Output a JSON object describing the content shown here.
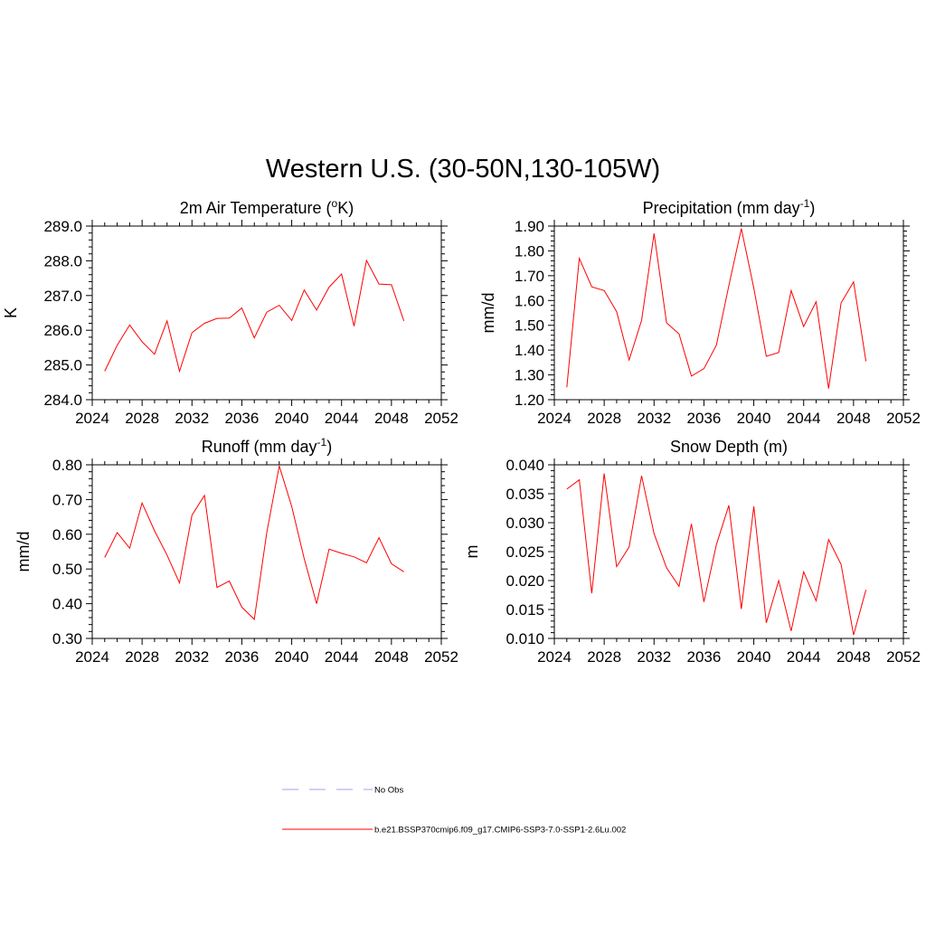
{
  "title": "Western U.S. (30-50N,130-105W)",
  "chart_data": [
    {
      "type": "line",
      "title": "2m Air Temperature (",
      "title_sup": "o",
      "title_post": "K)",
      "ylabel": "K",
      "xlim": [
        2024,
        2052
      ],
      "ylim": [
        284.0,
        289.0
      ],
      "xticks": [
        "2024",
        "2028",
        "2032",
        "2036",
        "2040",
        "2044",
        "2048",
        "2052"
      ],
      "yticks": [
        "284.0",
        "285.0",
        "286.0",
        "287.0",
        "288.0",
        "289.0"
      ],
      "x": [
        2025,
        2026,
        2027,
        2028,
        2029,
        2030,
        2031,
        2032,
        2033,
        2034,
        2035,
        2036,
        2037,
        2038,
        2039,
        2040,
        2041,
        2042,
        2043,
        2044,
        2045,
        2046,
        2047,
        2048,
        2049
      ],
      "series": [
        {
          "color": "#ff0000",
          "values": [
            284.82,
            285.57,
            286.15,
            285.67,
            285.31,
            286.27,
            284.82,
            285.93,
            286.2,
            286.34,
            286.35,
            286.64,
            285.78,
            286.52,
            286.72,
            286.28,
            287.16,
            286.58,
            287.24,
            287.62,
            286.12,
            288.01,
            287.33,
            287.31,
            286.27
          ]
        }
      ]
    },
    {
      "type": "line",
      "title": "Precipitation (mm day",
      "title_sup": "-1",
      "title_post": ")",
      "ylabel": "mm/d",
      "xlim": [
        2024,
        2052
      ],
      "ylim": [
        1.2,
        1.9
      ],
      "xticks": [
        "2024",
        "2028",
        "2032",
        "2036",
        "2040",
        "2044",
        "2048",
        "2052"
      ],
      "yticks": [
        "1.20",
        "1.30",
        "1.40",
        "1.50",
        "1.60",
        "1.70",
        "1.80",
        "1.90"
      ],
      "x": [
        2025,
        2026,
        2027,
        2028,
        2029,
        2030,
        2031,
        2032,
        2033,
        2034,
        2035,
        2036,
        2037,
        2038,
        2039,
        2040,
        2041,
        2042,
        2043,
        2044,
        2045,
        2046,
        2047,
        2048,
        2049
      ],
      "series": [
        {
          "color": "#ff0000",
          "values": [
            1.25,
            1.77,
            1.655,
            1.64,
            1.555,
            1.36,
            1.52,
            1.87,
            1.51,
            1.465,
            1.295,
            1.325,
            1.42,
            1.66,
            1.89,
            1.65,
            1.375,
            1.39,
            1.64,
            1.495,
            1.595,
            1.245,
            1.59,
            1.675,
            1.355
          ]
        }
      ]
    },
    {
      "type": "line",
      "title": "Runoff (mm day",
      "title_sup": "-1",
      "title_post": ")",
      "ylabel": "mm/d",
      "xlim": [
        2024,
        2052
      ],
      "ylim": [
        0.3,
        0.8
      ],
      "xticks": [
        "2024",
        "2028",
        "2032",
        "2036",
        "2040",
        "2044",
        "2048",
        "2052"
      ],
      "yticks": [
        "0.30",
        "0.40",
        "0.50",
        "0.60",
        "0.70",
        "0.80"
      ],
      "x": [
        2025,
        2026,
        2027,
        2028,
        2029,
        2030,
        2031,
        2032,
        2033,
        2034,
        2035,
        2036,
        2037,
        2038,
        2039,
        2040,
        2041,
        2042,
        2043,
        2044,
        2045,
        2046,
        2047,
        2048,
        2049
      ],
      "series": [
        {
          "color": "#ff0000",
          "values": [
            0.533,
            0.605,
            0.56,
            0.69,
            0.61,
            0.54,
            0.46,
            0.655,
            0.712,
            0.447,
            0.465,
            0.39,
            0.355,
            0.605,
            0.797,
            0.68,
            0.53,
            0.4,
            0.557,
            0.545,
            0.535,
            0.518,
            0.59,
            0.515,
            0.492
          ]
        }
      ]
    },
    {
      "type": "line",
      "title": "Snow Depth (m)",
      "title_sup": "",
      "title_post": "",
      "ylabel": "m",
      "xlim": [
        2024,
        2052
      ],
      "ylim": [
        0.01,
        0.04
      ],
      "xticks": [
        "2024",
        "2028",
        "2032",
        "2036",
        "2040",
        "2044",
        "2048",
        "2052"
      ],
      "yticks": [
        "0.010",
        "0.015",
        "0.020",
        "0.025",
        "0.030",
        "0.035",
        "0.040"
      ],
      "x": [
        2025,
        2026,
        2027,
        2028,
        2029,
        2030,
        2031,
        2032,
        2033,
        2034,
        2035,
        2036,
        2037,
        2038,
        2039,
        2040,
        2041,
        2042,
        2043,
        2044,
        2045,
        2046,
        2047,
        2048,
        2049
      ],
      "series": [
        {
          "color": "#ff0000",
          "values": [
            0.0358,
            0.0374,
            0.0178,
            0.0385,
            0.0224,
            0.0258,
            0.0381,
            0.0281,
            0.0222,
            0.019,
            0.0298,
            0.0163,
            0.0262,
            0.033,
            0.0151,
            0.0328,
            0.0127,
            0.02,
            0.0113,
            0.0215,
            0.0165,
            0.0271,
            0.0228,
            0.0106,
            0.0184
          ]
        }
      ]
    }
  ],
  "legend": [
    {
      "label": "No Obs",
      "style": "dashed",
      "color": "#a0a0f0"
    },
    {
      "label": "b.e21.BSSP370cmip6.f09_g17.CMIP6-SSP3-7.0-SSP1-2.6Lu.002",
      "style": "solid",
      "color": "#ff0000"
    }
  ]
}
